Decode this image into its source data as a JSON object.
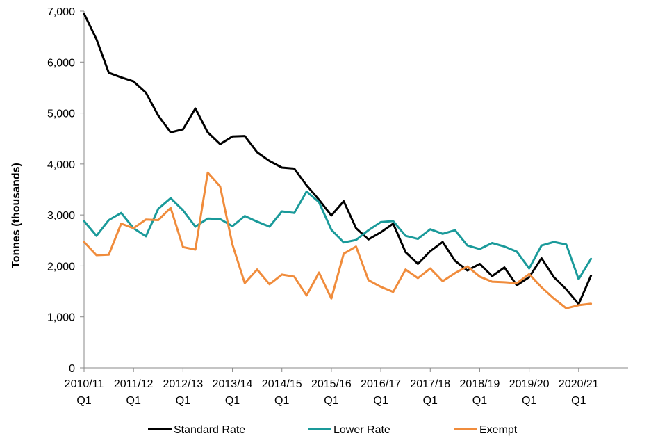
{
  "chart_data": {
    "type": "line",
    "ylabel": "Tonnes (thousands)",
    "xlabel": "",
    "ylim": [
      0,
      7000
    ],
    "yticks": [
      0,
      1000,
      2000,
      3000,
      4000,
      5000,
      6000,
      7000
    ],
    "ytick_labels": [
      "0",
      "1,000",
      "2,000",
      "3,000",
      "4,000",
      "5,000",
      "6,000",
      "7,000"
    ],
    "x_categories": [
      "2010/11 Q1",
      "2010/11 Q2",
      "2010/11 Q3",
      "2010/11 Q4",
      "2011/12 Q1",
      "2011/12 Q2",
      "2011/12 Q3",
      "2011/12 Q4",
      "2012/13 Q1",
      "2012/13 Q2",
      "2012/13 Q3",
      "2012/13 Q4",
      "2013/14 Q1",
      "2013/14 Q2",
      "2013/14 Q3",
      "2013/14 Q4",
      "2014/15 Q1",
      "2014/15 Q2",
      "2014/15 Q3",
      "2014/15 Q4",
      "2015/16 Q1",
      "2015/16 Q2",
      "2015/16 Q3",
      "2015/16 Q4",
      "2016/17 Q1",
      "2016/17 Q2",
      "2016/17 Q3",
      "2016/17 Q4",
      "2017/18 Q1",
      "2017/18 Q2",
      "2017/18 Q3",
      "2017/18 Q4",
      "2018/19 Q1",
      "2018/19 Q2",
      "2018/19 Q3",
      "2018/19 Q4",
      "2019/20 Q1",
      "2019/20 Q2",
      "2019/20 Q3",
      "2019/20 Q4",
      "2020/21 Q1",
      "2020/21 Q2",
      "2020/21 Q3",
      "2020/21 Q4"
    ],
    "xtick_labels": [
      {
        "year": "2010/11",
        "quarter": "Q1"
      },
      {
        "year": "2011/12",
        "quarter": "Q1"
      },
      {
        "year": "2012/13",
        "quarter": "Q1"
      },
      {
        "year": "2013/14",
        "quarter": "Q1"
      },
      {
        "year": "2014/15",
        "quarter": "Q1"
      },
      {
        "year": "2015/16",
        "quarter": "Q1"
      },
      {
        "year": "2016/17",
        "quarter": "Q1"
      },
      {
        "year": "2017/18",
        "quarter": "Q1"
      },
      {
        "year": "2018/19",
        "quarter": "Q1"
      },
      {
        "year": "2019/20",
        "quarter": "Q1"
      },
      {
        "year": "2020/21",
        "quarter": "Q1"
      }
    ],
    "legend_position": "bottom",
    "grid": false,
    "series": [
      {
        "name": "Standard Rate",
        "color": "#000000",
        "values": [
          6950,
          6450,
          5790,
          5700,
          5620,
          5400,
          4950,
          4620,
          4680,
          5090,
          4620,
          4390,
          4540,
          4550,
          4230,
          4060,
          3930,
          3910,
          3580,
          3300,
          2990,
          3270,
          2740,
          2520,
          2660,
          2830,
          2270,
          2040,
          2290,
          2470,
          2100,
          1910,
          2040,
          1800,
          1970,
          1620,
          1780,
          2150,
          1780,
          1540,
          1250,
          1810
        ]
      },
      {
        "name": "Lower Rate",
        "color": "#1a9a9a",
        "values": [
          2880,
          2590,
          2900,
          3040,
          2740,
          2580,
          3120,
          3330,
          3090,
          2770,
          2930,
          2920,
          2780,
          2980,
          2870,
          2770,
          3070,
          3040,
          3460,
          3250,
          2710,
          2460,
          2510,
          2700,
          2860,
          2880,
          2590,
          2530,
          2720,
          2630,
          2700,
          2400,
          2330,
          2450,
          2380,
          2280,
          1950,
          2400,
          2470,
          2420,
          1740,
          2140
        ]
      },
      {
        "name": "Exempt",
        "color": "#f08c3c",
        "values": [
          2470,
          2210,
          2220,
          2830,
          2740,
          2910,
          2900,
          3140,
          2370,
          2320,
          3830,
          3560,
          2420,
          1660,
          1930,
          1640,
          1830,
          1790,
          1420,
          1870,
          1360,
          2240,
          2380,
          1720,
          1590,
          1490,
          1930,
          1760,
          1950,
          1700,
          1860,
          1990,
          1790,
          1690,
          1680,
          1660,
          1840,
          1580,
          1360,
          1170,
          1230,
          1260
        ]
      }
    ]
  }
}
